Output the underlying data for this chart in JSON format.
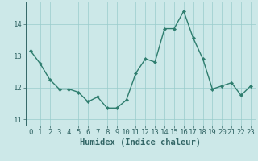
{
  "title": "",
  "xlabel": "Humidex (Indice chaleur)",
  "ylabel": "",
  "x_values": [
    0,
    1,
    2,
    3,
    4,
    5,
    6,
    7,
    8,
    9,
    10,
    11,
    12,
    13,
    14,
    15,
    16,
    17,
    18,
    19,
    20,
    21,
    22,
    23
  ],
  "y_values": [
    13.15,
    12.75,
    12.25,
    11.95,
    11.95,
    11.85,
    11.55,
    11.7,
    11.35,
    11.35,
    11.6,
    12.45,
    12.9,
    12.8,
    13.85,
    13.85,
    14.4,
    13.55,
    12.9,
    11.95,
    12.05,
    12.15,
    11.75,
    12.05
  ],
  "line_color": "#2e7d6e",
  "marker": "D",
  "marker_size": 2.2,
  "bg_color": "#cce8e8",
  "grid_color": "#99cccc",
  "axis_color": "#336666",
  "ylim": [
    10.8,
    14.7
  ],
  "yticks": [
    11,
    12,
    13,
    14
  ],
  "xlim": [
    -0.5,
    23.5
  ],
  "xticks": [
    0,
    1,
    2,
    3,
    4,
    5,
    6,
    7,
    8,
    9,
    10,
    11,
    12,
    13,
    14,
    15,
    16,
    17,
    18,
    19,
    20,
    21,
    22,
    23
  ],
  "xlabel_fontsize": 7.5,
  "tick_fontsize": 6.5,
  "line_width": 1.0
}
